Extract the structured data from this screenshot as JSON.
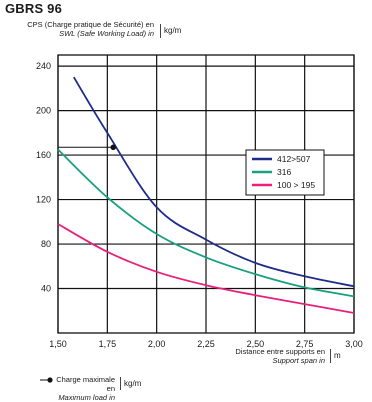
{
  "chart_data": {
    "type": "line",
    "title": "GBRS 96",
    "ylabel": "CPS (Charge pratique de Sécurité) en",
    "ylabel_en": "SWL (Safe Working Load) in",
    "yunit": "kg/m",
    "xlabel": "Distance entre supports en",
    "xlabel_en": "Support span in",
    "xunit": "m",
    "xlim": [
      1.5,
      3.0
    ],
    "ylim": [
      0,
      250
    ],
    "x_ticks": [
      "1,50",
      "1,75",
      "2,00",
      "2,25",
      "2,50",
      "2,75",
      "3,00"
    ],
    "y_ticks": [
      40,
      80,
      120,
      160,
      200,
      240
    ],
    "grid": true,
    "legend_position": "right",
    "series": [
      {
        "name": "412>507",
        "color": "#1f2d8a",
        "x": [
          1.58,
          1.75,
          2.0,
          2.25,
          2.5,
          2.75,
          3.0
        ],
        "y": [
          230,
          180,
          113,
          84,
          63,
          51,
          42
        ]
      },
      {
        "name": "316",
        "color": "#1aa07f",
        "x": [
          1.5,
          1.75,
          2.0,
          2.25,
          2.5,
          2.75,
          3.0
        ],
        "y": [
          165,
          122,
          89,
          68,
          53,
          41,
          33
        ]
      },
      {
        "name": "100 > 195",
        "color": "#e9207a",
        "x": [
          1.5,
          1.75,
          2.0,
          2.25,
          2.5,
          2.75,
          3.0
        ],
        "y": [
          98,
          73,
          55,
          43,
          34,
          26,
          18
        ]
      }
    ],
    "marker": {
      "x": 1.78,
      "y": 167,
      "label": "Charge maximale en",
      "label_en": "Maximum load in",
      "unit": "kg/m"
    }
  }
}
